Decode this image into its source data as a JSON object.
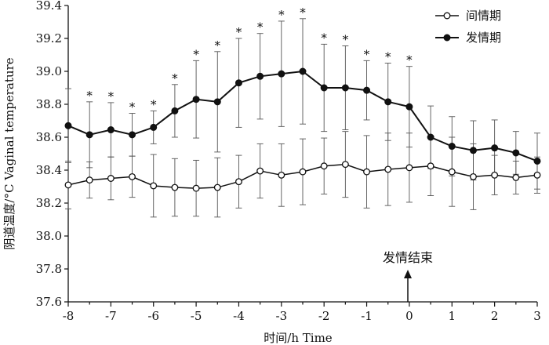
{
  "chart_data": {
    "type": "line",
    "xlabel": "时间/h Time",
    "ylabel": "阴道温度/°C Vaginal temperature",
    "xlim": [
      -8,
      3
    ],
    "ylim": [
      37.6,
      39.4
    ],
    "x_ticks": [
      "-8",
      "-7",
      "-6",
      "-5",
      "-4",
      "-3",
      "-2",
      "-1",
      "0",
      "1",
      "2",
      "3"
    ],
    "y_ticks": [
      "37.6",
      "37.8",
      "38.0",
      "38.2",
      "38.4",
      "38.6",
      "38.8",
      "39.0",
      "39.2",
      "39.4"
    ],
    "x": [
      -8,
      -7.5,
      -7,
      -6.5,
      -6,
      -5.5,
      -5,
      -4.5,
      -4,
      -3.5,
      -3,
      -2.5,
      -2,
      -1.5,
      -1,
      -0.5,
      0,
      0.5,
      1,
      1.5,
      2,
      2.5,
      3
    ],
    "series": [
      {
        "name": "间情期",
        "marker": "open-circle",
        "values": [
          38.31,
          38.34,
          38.35,
          38.36,
          38.305,
          38.295,
          38.29,
          38.295,
          38.33,
          38.395,
          38.37,
          38.39,
          38.425,
          38.435,
          38.39,
          38.405,
          38.415,
          38.425,
          38.39,
          38.36,
          38.37,
          38.355,
          38.37
        ],
        "errors": [
          0.145,
          0.11,
          0.13,
          0.125,
          0.19,
          0.175,
          0.17,
          0.18,
          0.16,
          0.165,
          0.19,
          0.2,
          0.17,
          0.2,
          0.22,
          0.22,
          0.21,
          0.18,
          0.21,
          0.2,
          0.12,
          0.1,
          0.11
        ]
      },
      {
        "name": "发情期",
        "marker": "filled-circle",
        "values": [
          38.67,
          38.615,
          38.645,
          38.615,
          38.66,
          38.76,
          38.83,
          38.815,
          38.93,
          38.97,
          38.985,
          39.0,
          38.9,
          38.9,
          38.885,
          38.815,
          38.785,
          38.6,
          38.545,
          38.52,
          38.535,
          38.505,
          38.455
        ],
        "errors": [
          0.225,
          0.2,
          0.165,
          0.13,
          0.1,
          0.16,
          0.235,
          0.305,
          0.27,
          0.26,
          0.32,
          0.32,
          0.265,
          0.255,
          0.18,
          0.235,
          0.245,
          0.19,
          0.18,
          0.18,
          0.17,
          0.13,
          0.17
        ]
      }
    ],
    "significance": {
      "label": "*",
      "x": [
        -7.5,
        -7,
        -6.5,
        -6,
        -5.5,
        -5,
        -4.5,
        -4,
        -3.5,
        -3,
        -2.5,
        -2,
        -1.5,
        -1,
        -0.5,
        0
      ]
    },
    "annotation": {
      "text": "发情结束",
      "x": 0
    },
    "legend": {
      "placement": "top-right",
      "items": [
        "间情期",
        "发情期"
      ]
    },
    "grid": false
  }
}
